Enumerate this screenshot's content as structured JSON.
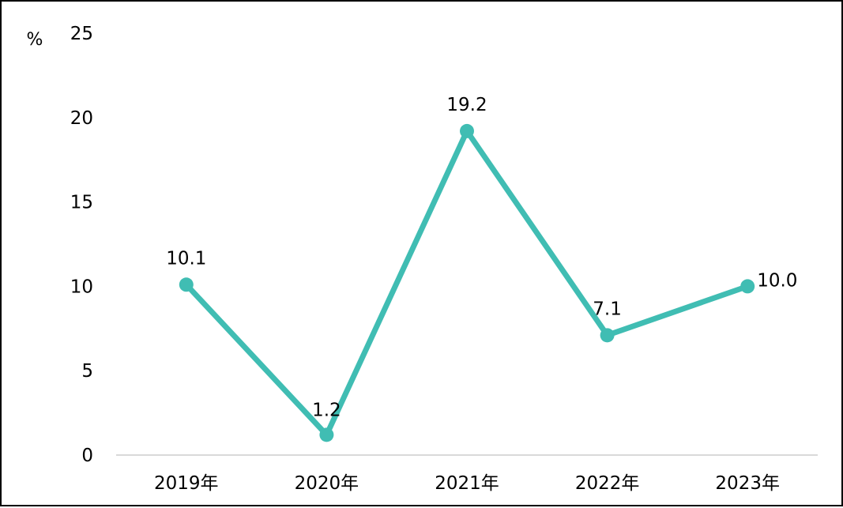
{
  "chart_data": {
    "type": "line",
    "categories": [
      "2019年",
      "2020年",
      "2021年",
      "2022年",
      "2023年"
    ],
    "series": [
      {
        "values": [
          10.1,
          1.2,
          19.2,
          7.1,
          10.0
        ],
        "labels": [
          "10.1",
          "1.2",
          "19.2",
          "7.1",
          "10.0"
        ]
      }
    ],
    "y_unit": "%",
    "ylim": [
      0,
      25
    ],
    "yticks": [
      "0",
      "5",
      "10",
      "15",
      "20",
      "25"
    ],
    "grid": false,
    "legend": "none",
    "colors": {
      "line": "#40bdb3",
      "axis": "#d9d9d9",
      "frame": "#000000"
    }
  }
}
